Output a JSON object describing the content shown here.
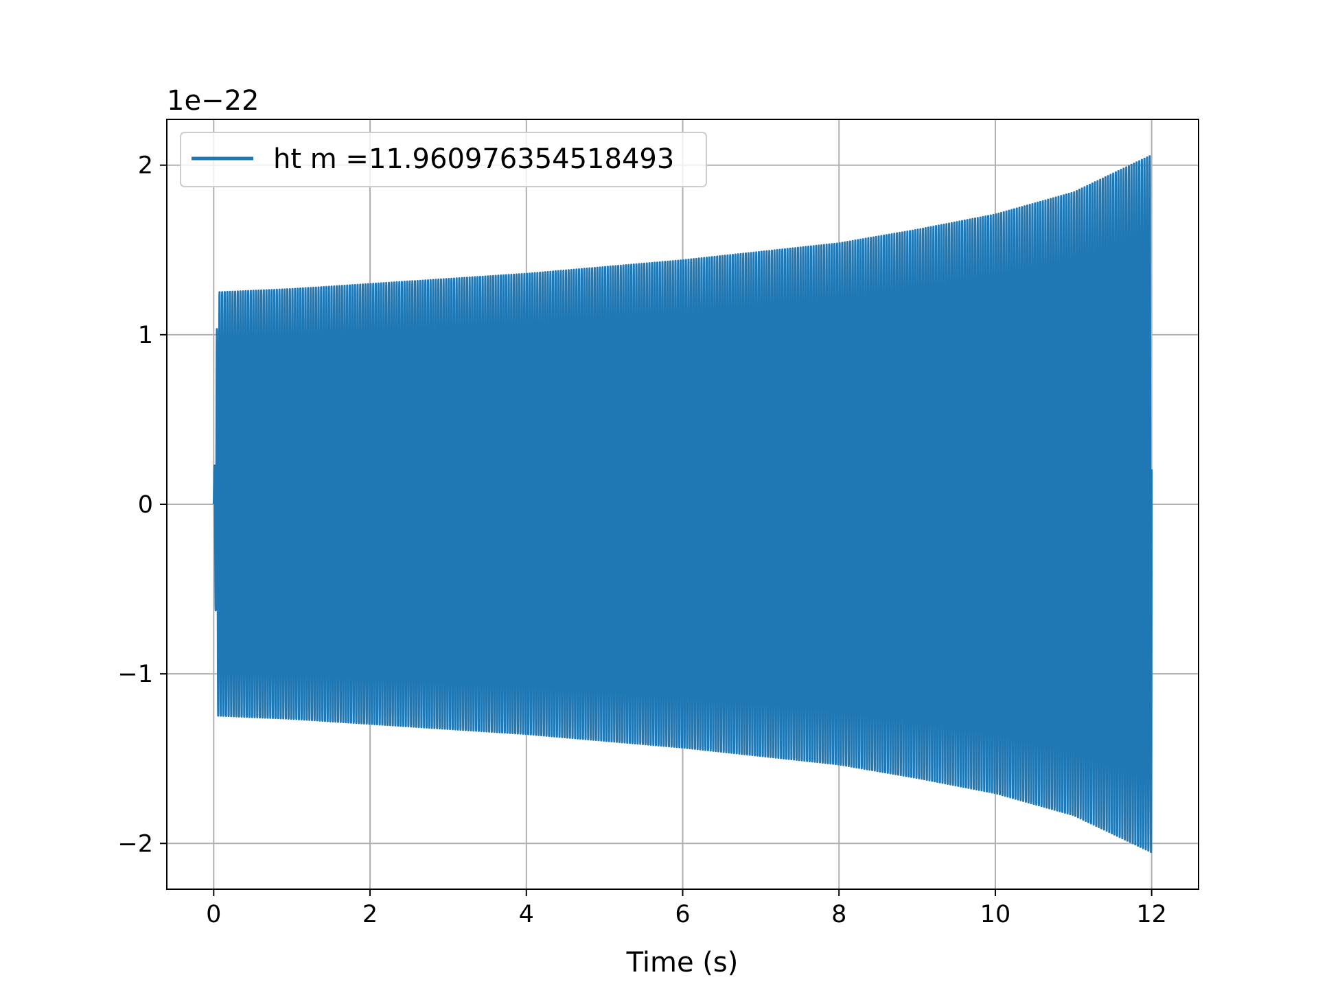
{
  "chart_data": {
    "type": "line",
    "title": "",
    "xlabel": "Time (s)",
    "ylabel": "",
    "y_offset_label": "1e−22",
    "xlim": [
      -0.6,
      12.6
    ],
    "ylim": [
      -2.27,
      2.27
    ],
    "xticks": [
      0,
      2,
      4,
      6,
      8,
      10,
      12
    ],
    "xtick_labels": [
      "0",
      "2",
      "4",
      "6",
      "8",
      "10",
      "12"
    ],
    "yticks": [
      -2,
      -1,
      0,
      1,
      2
    ],
    "ytick_labels": [
      "−2",
      "−1",
      "0",
      "1",
      "2"
    ],
    "grid": true,
    "legend_position": "top-left",
    "series": [
      {
        "name": "ht m =11.960976354518493",
        "color": "#1f77b4",
        "t_start": 0,
        "t_end": 12,
        "amplitude_envelope": {
          "t": [
            0,
            1,
            2,
            3,
            4,
            5,
            6,
            7,
            8,
            9,
            10,
            11,
            12
          ],
          "amp": [
            1.25,
            1.27,
            1.3,
            1.33,
            1.36,
            1.4,
            1.44,
            1.49,
            1.54,
            1.62,
            1.71,
            1.84,
            2.06
          ]
        },
        "frequency_hz": 30,
        "y_units": "1e-22"
      }
    ]
  }
}
